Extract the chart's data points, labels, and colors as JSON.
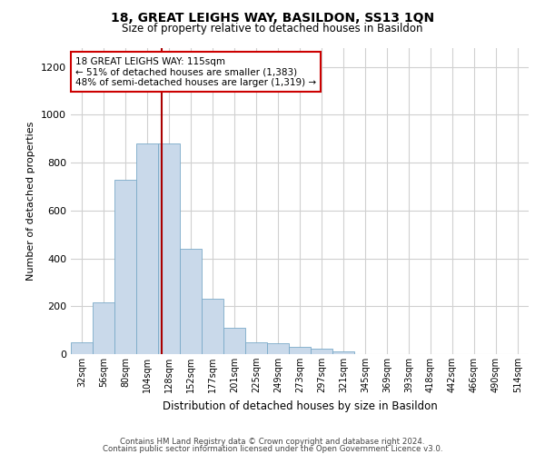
{
  "title": "18, GREAT LEIGHS WAY, BASILDON, SS13 1QN",
  "subtitle": "Size of property relative to detached houses in Basildon",
  "xlabel": "Distribution of detached houses by size in Basildon",
  "ylabel": "Number of detached properties",
  "bar_color": "#c9d9ea",
  "bar_edge_color": "#7aaac8",
  "categories": [
    "32sqm",
    "56sqm",
    "80sqm",
    "104sqm",
    "128sqm",
    "152sqm",
    "177sqm",
    "201sqm",
    "225sqm",
    "249sqm",
    "273sqm",
    "297sqm",
    "321sqm",
    "345sqm",
    "369sqm",
    "393sqm",
    "418sqm",
    "442sqm",
    "466sqm",
    "490sqm",
    "514sqm"
  ],
  "values": [
    50,
    218,
    730,
    880,
    880,
    440,
    230,
    110,
    48,
    45,
    30,
    22,
    10,
    0,
    0,
    0,
    0,
    0,
    0,
    0,
    0
  ],
  "ylim": [
    0,
    1280
  ],
  "yticks": [
    0,
    200,
    400,
    600,
    800,
    1000,
    1200
  ],
  "vline_x": 3.65,
  "annotation_text": "18 GREAT LEIGHS WAY: 115sqm\n← 51% of detached houses are smaller (1,383)\n48% of semi-detached houses are larger (1,319) →",
  "annotation_box_color": "#ffffff",
  "annotation_box_edge_color": "#cc0000",
  "vline_color": "#aa0000",
  "footer_line1": "Contains HM Land Registry data © Crown copyright and database right 2024.",
  "footer_line2": "Contains public sector information licensed under the Open Government Licence v3.0.",
  "bg_color": "#ffffff",
  "grid_color": "#d0d0d0"
}
